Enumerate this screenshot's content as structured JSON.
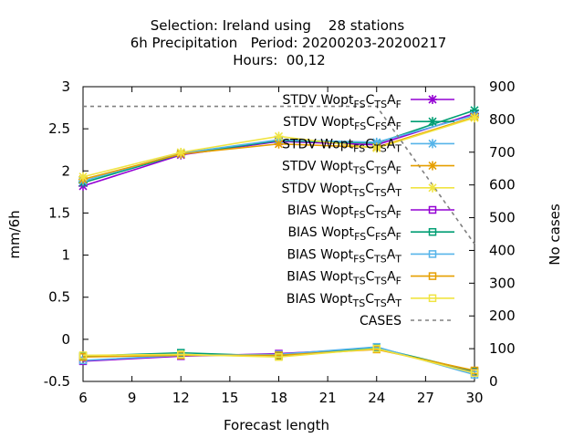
{
  "chart_data": {
    "type": "line",
    "title_lines": [
      "Selection: Ireland using    28 stations",
      "6h Precipitation   Period: 20200203-20200217",
      "Hours:  00,12"
    ],
    "xlabel": "Forecast length",
    "ylabel": "mm/6h",
    "y2label": "No cases",
    "xlim": [
      6,
      30
    ],
    "ylim": [
      -0.5,
      3
    ],
    "y2lim": [
      0,
      900
    ],
    "xticks": [
      6,
      9,
      12,
      15,
      18,
      21,
      24,
      27,
      30
    ],
    "yticks": [
      -0.5,
      0,
      0.5,
      1,
      1.5,
      2,
      2.5,
      3
    ],
    "ytick_labels": [
      "-0.5",
      "0",
      "0.5",
      "1",
      "1.5",
      "2",
      "2.5",
      "3"
    ],
    "y2ticks": [
      0,
      100,
      200,
      300,
      400,
      500,
      600,
      700,
      800,
      900
    ],
    "grid": false,
    "legend_position": "top-right",
    "x": [
      6,
      12,
      18,
      24,
      30
    ],
    "series": [
      {
        "name": "STDV Wopt FS CTS AF",
        "legend": [
          [
            "STDV Wopt",
            ""
          ],
          [
            "FS",
            "sub"
          ],
          [
            "C",
            ""
          ],
          [
            "TS",
            "sub"
          ],
          [
            "A",
            ""
          ],
          [
            "F",
            "sub"
          ]
        ],
        "color": "#9400d3",
        "marker": "x",
        "axis": "left",
        "values": [
          1.82,
          2.19,
          2.35,
          2.31,
          2.68
        ]
      },
      {
        "name": "STDV Wopt FS CFS AF",
        "legend": [
          [
            "STDV Wopt",
            ""
          ],
          [
            "FS",
            "sub"
          ],
          [
            "C",
            ""
          ],
          [
            "FS",
            "sub"
          ],
          [
            "A",
            ""
          ],
          [
            "F",
            "sub"
          ]
        ],
        "color": "#009e73",
        "marker": "x",
        "axis": "left",
        "values": [
          1.86,
          2.2,
          2.36,
          2.33,
          2.72
        ]
      },
      {
        "name": "STDV Wopt FS CTS AT",
        "legend": [
          [
            "STDV Wopt",
            ""
          ],
          [
            "FS",
            "sub"
          ],
          [
            "C",
            ""
          ],
          [
            "TS",
            "sub"
          ],
          [
            "A",
            ""
          ],
          [
            "T",
            "sub"
          ]
        ],
        "color": "#56b4e9",
        "marker": "x",
        "axis": "left",
        "values": [
          1.88,
          2.21,
          2.37,
          2.34,
          2.66
        ]
      },
      {
        "name": "STDV Wopt TS CTS AF",
        "legend": [
          [
            "STDV Wopt",
            ""
          ],
          [
            "TS",
            "sub"
          ],
          [
            "C",
            ""
          ],
          [
            "TS",
            "sub"
          ],
          [
            "A",
            ""
          ],
          [
            "F",
            "sub"
          ]
        ],
        "color": "#e69f00",
        "marker": "x",
        "axis": "left",
        "values": [
          1.9,
          2.2,
          2.32,
          2.28,
          2.64
        ]
      },
      {
        "name": "STDV Wopt TS CTS AT",
        "legend": [
          [
            "STDV Wopt",
            ""
          ],
          [
            "TS",
            "sub"
          ],
          [
            "C",
            ""
          ],
          [
            "TS",
            "sub"
          ],
          [
            "A",
            ""
          ],
          [
            "T",
            "sub"
          ]
        ],
        "color": "#f0e442",
        "marker": "x",
        "axis": "left",
        "values": [
          1.93,
          2.22,
          2.41,
          2.27,
          2.63
        ]
      },
      {
        "name": "BIAS Wopt FS CTS AF",
        "legend": [
          [
            "BIAS Wopt",
            ""
          ],
          [
            "FS",
            "sub"
          ],
          [
            "C",
            ""
          ],
          [
            "TS",
            "sub"
          ],
          [
            "A",
            ""
          ],
          [
            "F",
            "sub"
          ]
        ],
        "color": "#9400d3",
        "marker": "square",
        "axis": "left",
        "values": [
          -0.26,
          -0.2,
          -0.17,
          -0.11,
          -0.39
        ]
      },
      {
        "name": "BIAS Wopt FS CFS AF",
        "legend": [
          [
            "BIAS Wopt",
            ""
          ],
          [
            "FS",
            "sub"
          ],
          [
            "C",
            ""
          ],
          [
            "FS",
            "sub"
          ],
          [
            "A",
            ""
          ],
          [
            "F",
            "sub"
          ]
        ],
        "color": "#009e73",
        "marker": "square",
        "axis": "left",
        "values": [
          -0.2,
          -0.16,
          -0.2,
          -0.1,
          -0.38
        ]
      },
      {
        "name": "BIAS Wopt FS CTS AT",
        "legend": [
          [
            "BIAS Wopt",
            ""
          ],
          [
            "FS",
            "sub"
          ],
          [
            "C",
            ""
          ],
          [
            "TS",
            "sub"
          ],
          [
            "A",
            ""
          ],
          [
            "T",
            "sub"
          ]
        ],
        "color": "#56b4e9",
        "marker": "square",
        "axis": "left",
        "values": [
          -0.25,
          -0.19,
          -0.18,
          -0.09,
          -0.42
        ]
      },
      {
        "name": "BIAS Wopt TS CTS AF",
        "legend": [
          [
            "BIAS Wopt",
            ""
          ],
          [
            "TS",
            "sub"
          ],
          [
            "C",
            ""
          ],
          [
            "TS",
            "sub"
          ],
          [
            "A",
            ""
          ],
          [
            "F",
            "sub"
          ]
        ],
        "color": "#e69f00",
        "marker": "square",
        "axis": "left",
        "values": [
          -0.21,
          -0.19,
          -0.19,
          -0.12,
          -0.37
        ]
      },
      {
        "name": "BIAS Wopt TS CTS AT",
        "legend": [
          [
            "BIAS Wopt",
            ""
          ],
          [
            "TS",
            "sub"
          ],
          [
            "C",
            ""
          ],
          [
            "TS",
            "sub"
          ],
          [
            "A",
            ""
          ],
          [
            "T",
            "sub"
          ]
        ],
        "color": "#f0e442",
        "marker": "square",
        "axis": "left",
        "values": [
          -0.19,
          -0.18,
          -0.21,
          -0.11,
          -0.4
        ]
      },
      {
        "name": "CASES",
        "legend": [
          [
            "CASES",
            ""
          ]
        ],
        "color": "#808080",
        "marker": "none",
        "dashed": true,
        "axis": "right",
        "values": [
          840,
          840,
          840,
          840,
          420
        ]
      }
    ]
  }
}
